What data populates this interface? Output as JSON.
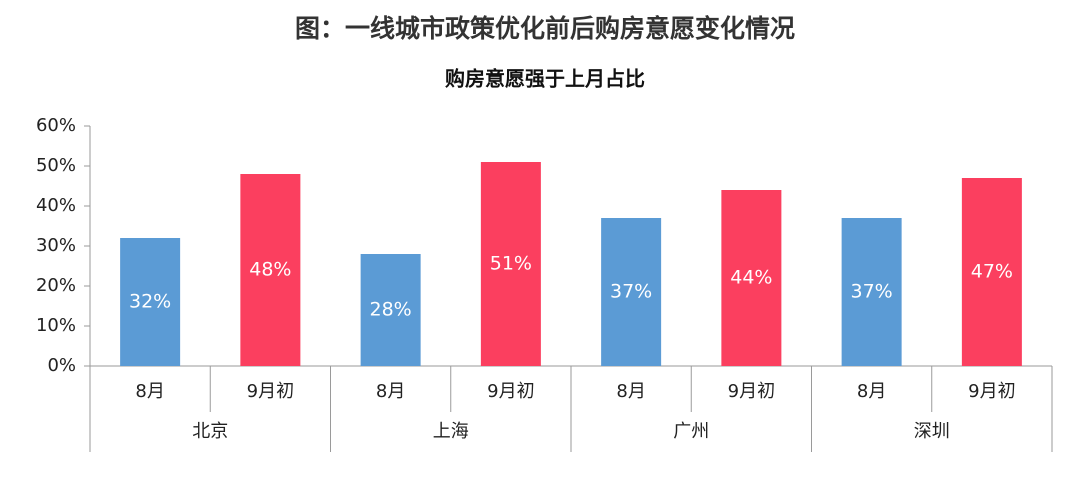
{
  "chart_data": {
    "type": "bar",
    "title": "图：一线城市政策优化前后购房意愿变化情况",
    "subtitle": "购房意愿强于上月占比",
    "categories": [
      "8月",
      "9月初",
      "8月",
      "9月初",
      "8月",
      "9月初",
      "8月",
      "9月初"
    ],
    "groups": [
      "北京",
      "上海",
      "广州",
      "深圳"
    ],
    "values": [
      32,
      48,
      28,
      51,
      37,
      44,
      37,
      47
    ],
    "value_labels": [
      "32%",
      "48%",
      "28%",
      "51%",
      "37%",
      "44%",
      "37%",
      "47%"
    ],
    "colors": [
      "#5b9bd5",
      "#fb3f5f",
      "#5b9bd5",
      "#fb3f5f",
      "#5b9bd5",
      "#fb3f5f",
      "#5b9bd5",
      "#fb3f5f"
    ],
    "ylim": [
      0,
      60
    ],
    "yticks": [
      {
        "value": 0,
        "label": "0%"
      },
      {
        "value": 10,
        "label": "10%"
      },
      {
        "value": 20,
        "label": "20%"
      },
      {
        "value": 30,
        "label": "30%"
      },
      {
        "value": 40,
        "label": "40%"
      },
      {
        "value": 50,
        "label": "50%"
      },
      {
        "value": 60,
        "label": "60%"
      }
    ],
    "grid": false
  }
}
